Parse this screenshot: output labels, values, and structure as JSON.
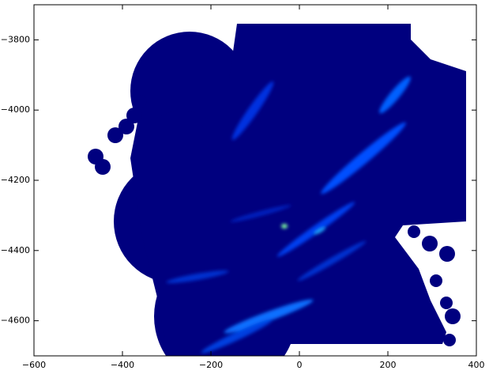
{
  "chart_data": {
    "type": "image",
    "xlim": [
      -600,
      400
    ],
    "ylim": [
      -4700,
      -3700
    ],
    "xticks": [
      {
        "value": -600,
        "label": "−600"
      },
      {
        "value": -400,
        "label": "−400"
      },
      {
        "value": -200,
        "label": "−200"
      },
      0,
      200,
      400
    ],
    "yticks": [
      {
        "value": -3800,
        "label": "−3800"
      },
      {
        "value": -4000,
        "label": "−4000"
      },
      {
        "value": -4200,
        "label": "−4200"
      },
      {
        "value": -4400,
        "label": "−4400"
      },
      {
        "value": -4600,
        "label": "−4600"
      }
    ]
  }
}
